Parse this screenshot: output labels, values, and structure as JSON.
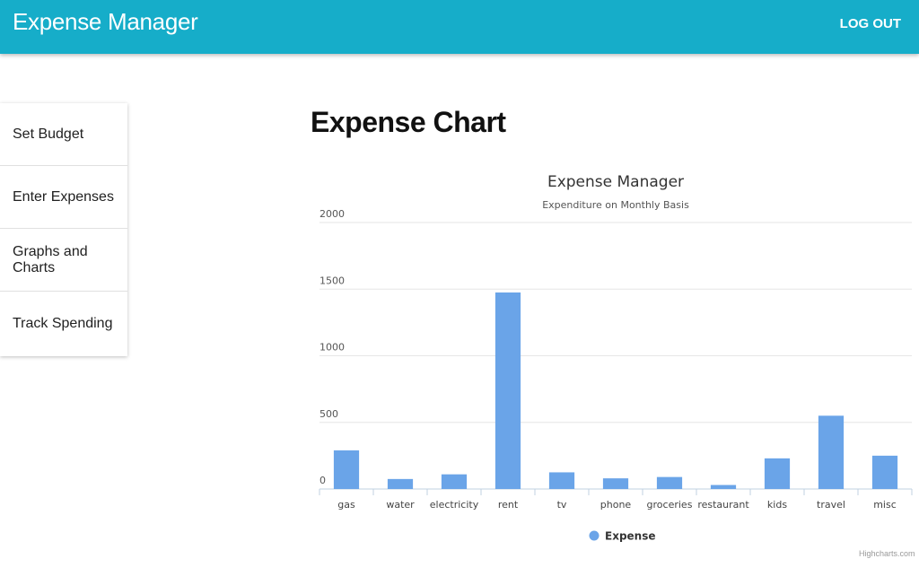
{
  "app": {
    "title": "Expense Manager",
    "logout_label": "LOG OUT"
  },
  "sidebar": {
    "items": [
      {
        "label": "Set Budget"
      },
      {
        "label": "Enter Expenses"
      },
      {
        "label": "Graphs and Charts"
      },
      {
        "label": "Track Spending"
      }
    ]
  },
  "page": {
    "heading": "Expense Chart",
    "credit": "Highcharts.com"
  },
  "colors": {
    "appbar": "#16adc9",
    "bar": "#6aa4e8"
  },
  "chart_data": {
    "type": "bar",
    "title": "Expense Manager",
    "subtitle": "Expenditure on Monthly Basis",
    "categories": [
      "gas",
      "water",
      "electricity",
      "rent",
      "tv",
      "phone",
      "groceries",
      "restaurant",
      "kids",
      "travel",
      "misc"
    ],
    "series": [
      {
        "name": "Expense",
        "values": [
          290,
          75,
          110,
          1475,
          125,
          80,
          90,
          30,
          230,
          550,
          250
        ]
      }
    ],
    "ylim": [
      0,
      2000
    ],
    "yticks": [
      0,
      500,
      1000,
      1500,
      2000
    ],
    "grid": true,
    "legend": "bottom-center"
  }
}
